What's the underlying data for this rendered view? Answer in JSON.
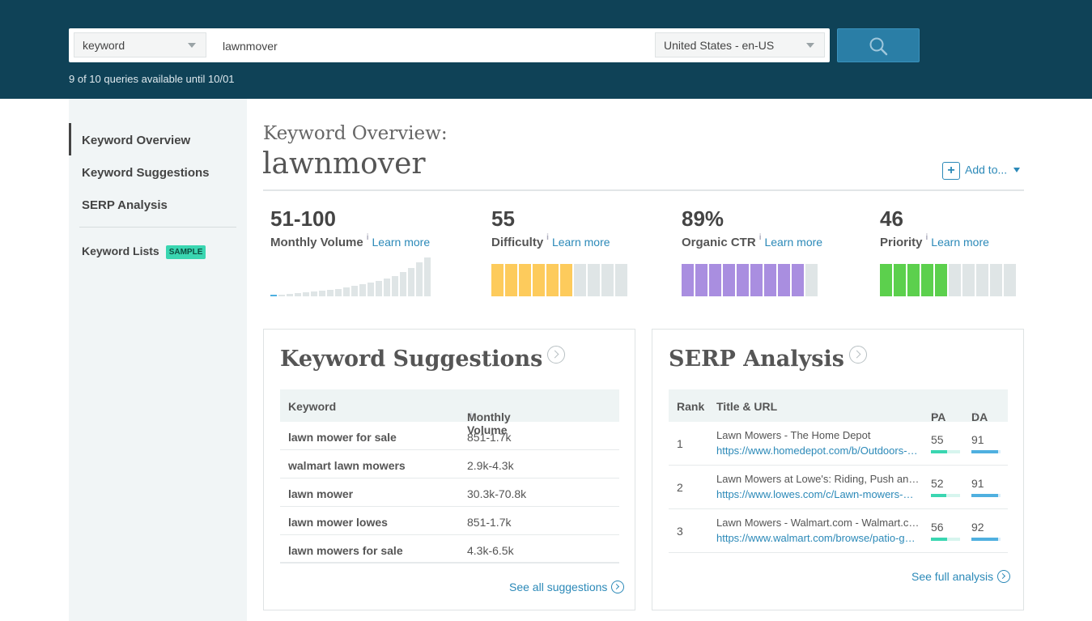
{
  "header": {
    "query_type": "keyword",
    "query": "lawnmover",
    "locale": "United States - en-US",
    "quota_text": "9 of 10 queries available until 10/01"
  },
  "sidebar": {
    "items": [
      {
        "label": "Keyword Overview",
        "active": true
      },
      {
        "label": "Keyword Suggestions"
      },
      {
        "label": "SERP Analysis"
      }
    ],
    "lists_label": "Keyword Lists",
    "lists_badge": "SAMPLE"
  },
  "overview": {
    "title_prefix": "Keyword Overview:",
    "keyword": "lawnmover",
    "add_to_label": "Add to..."
  },
  "metrics": [
    {
      "value": "51-100",
      "label": "Monthly Volume",
      "learn": "Learn more",
      "chart": "volume-trend"
    },
    {
      "value": "55",
      "label": "Difficulty",
      "learn": "Learn more",
      "filled_segments": 6,
      "total_segments": 10,
      "color": "#fdcb5c"
    },
    {
      "value": "89%",
      "label": "Organic CTR",
      "learn": "Learn more",
      "filled_segments": 9,
      "total_segments": 10,
      "color": "#a98ee0"
    },
    {
      "value": "46",
      "label": "Priority",
      "learn": "Learn more",
      "filled_segments": 5,
      "total_segments": 10,
      "color": "#5cd04d"
    }
  ],
  "volume_trend": [
    1,
    2,
    3,
    4,
    5,
    6,
    7,
    8,
    9,
    11,
    13,
    15,
    17,
    19,
    22,
    25,
    30,
    35,
    42,
    48
  ],
  "suggestions": {
    "title": "Keyword Suggestions",
    "col_keyword": "Keyword",
    "col_volume": "Monthly Volume",
    "rows": [
      {
        "keyword": "lawn mower for sale",
        "volume": "851-1.7k"
      },
      {
        "keyword": "walmart lawn mowers",
        "volume": "2.9k-4.3k"
      },
      {
        "keyword": "lawn mower",
        "volume": "30.3k-70.8k"
      },
      {
        "keyword": "lawn mower lowes",
        "volume": "851-1.7k"
      },
      {
        "keyword": "lawn mowers for sale",
        "volume": "4.3k-6.5k"
      }
    ],
    "see_all": "See all suggestions"
  },
  "serp": {
    "title": "SERP Analysis",
    "col_rank": "Rank",
    "col_title": "Title & URL",
    "col_pa": "PA",
    "col_da": "DA",
    "rows": [
      {
        "rank": "1",
        "title": "Lawn Mowers - The Home Depot",
        "url": "https://www.homedepot.com/b/Outdoors-Outdoor-Power-Equipment-Lawn-Mowers",
        "pa": "55",
        "da": "91"
      },
      {
        "rank": "2",
        "title": "Lawn Mowers at Lowe's: Riding, Push and Reel Mowers",
        "url": "https://www.lowes.com/c/Lawn-mowers-Outdoor-tools-equipment",
        "pa": "52",
        "da": "91"
      },
      {
        "rank": "3",
        "title": "Lawn Mowers - Walmart.com - Walmart.com",
        "url": "https://www.walmart.com/browse/patio-garden/lawn-mowers",
        "pa": "56",
        "da": "92"
      }
    ],
    "see_full": "See full analysis"
  }
}
